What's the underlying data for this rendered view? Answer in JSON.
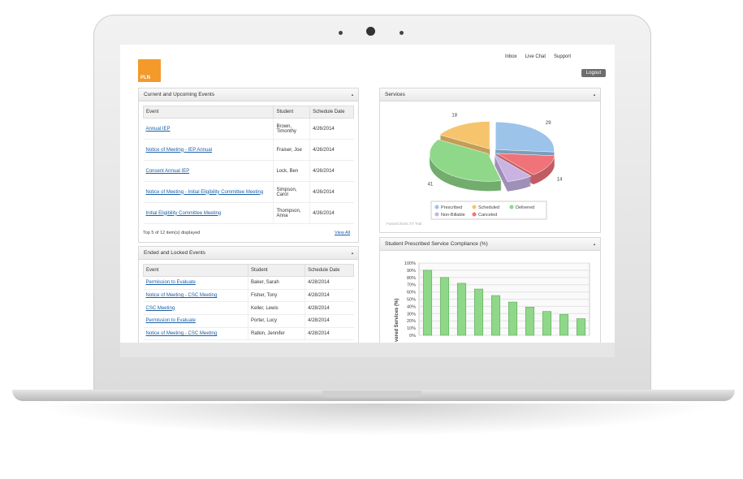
{
  "header": {
    "logo": "PLN",
    "links": [
      "Inbox",
      "Live Chat",
      "Support"
    ],
    "logout": "Logout"
  },
  "upcoming": {
    "title": "Current and Upcoming Events",
    "columns": [
      "Event",
      "Student",
      "Schedule Date"
    ],
    "rows": [
      [
        "Annual IEP",
        "Brown, Timonthy",
        "4/26/2014"
      ],
      [
        "Notice of Meeting - IEP Annual",
        "Fraiser, Joe",
        "4/26/2014"
      ],
      [
        "Consent Annual IEP",
        "Lock, Ben",
        "4/26/2014"
      ],
      [
        "Notice of Meeting - Initial Eligibility Committee Meeting",
        "Simpson, Carol",
        "4/26/2014"
      ],
      [
        "Initial Eligibility Committee Meeting",
        "Thompson, Anna",
        "4/26/2014"
      ]
    ],
    "footer": "Top 5 of 12 item(s) displayed",
    "view_all": "View All"
  },
  "ended": {
    "title": "Ended and Locked Events",
    "columns": [
      "Event",
      "Student",
      "Schedule Date"
    ],
    "rows": [
      [
        "Permission to Evaluate",
        "Baker, Sarah",
        "4/28/2014"
      ],
      [
        "Notice of Meeting - CSC Meeting",
        "Fisher, Tony",
        "4/28/2014"
      ],
      [
        "CSC Meeting",
        "Keller, Lewis",
        "4/28/2014"
      ],
      [
        "Permission to Evaluate",
        "Porter, Lucy",
        "4/28/2014"
      ],
      [
        "Notice of Meeting - CSC Meeting",
        "Ratkin, Jennifer",
        "4/28/2014"
      ]
    ]
  },
  "chart_data": [
    {
      "type": "pie",
      "title": "Services",
      "categories": [
        "Prescribed",
        "Scheduled",
        "Delivered",
        "Non-Billable",
        "Canceled"
      ],
      "values": [
        29,
        18,
        41,
        8,
        14
      ],
      "value_labels": [
        "29",
        "18",
        "41",
        null,
        "14"
      ],
      "colors": [
        "#9cc3ea",
        "#f5c46c",
        "#8fd88a",
        "#c8b3e3",
        "#f0737a"
      ],
      "watermark": "FusionCharts XT Trial"
    },
    {
      "type": "bar",
      "title": "Student Prescribed Service Compliance (%)",
      "y_label": "vered Services (%)",
      "values": [
        90,
        80,
        72,
        64,
        55,
        46,
        39,
        33,
        29,
        23
      ],
      "color": "#8fd88a",
      "ylim": [
        0,
        100
      ],
      "yticks": [
        {
          "value": 0,
          "label": "0%"
        },
        {
          "value": 10,
          "label": "10%"
        },
        {
          "value": 20,
          "label": "20%"
        },
        {
          "value": 30,
          "label": "30%"
        },
        {
          "value": 40,
          "label": "40%"
        },
        {
          "value": 50,
          "label": "50%"
        },
        {
          "value": 60,
          "label": "60%"
        },
        {
          "value": 70,
          "label": "70%"
        },
        {
          "value": 80,
          "label": "80%"
        },
        {
          "value": 90,
          "label": "90%"
        },
        {
          "value": 100,
          "label": "100%"
        }
      ],
      "grid": true
    }
  ]
}
